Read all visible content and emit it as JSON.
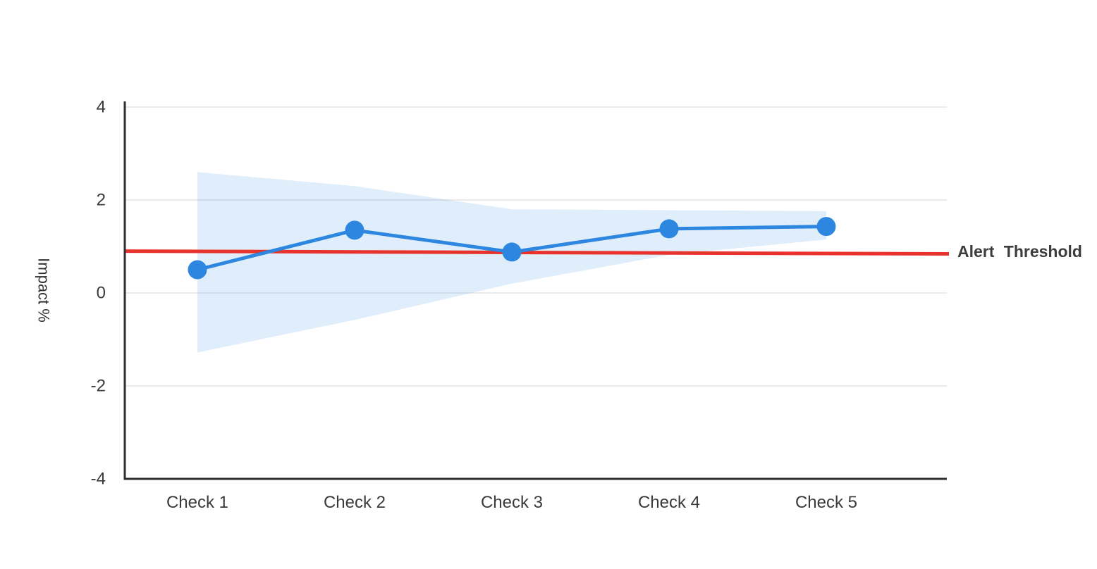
{
  "chart_data": {
    "type": "line",
    "title": "",
    "categories": [
      "Check 1",
      "Check 2",
      "Check 3",
      "Check 4",
      "Check 5"
    ],
    "series": [
      {
        "name": "Impact %",
        "values": [
          0.5,
          1.35,
          0.88,
          1.38,
          1.43
        ]
      }
    ],
    "confidence_band": {
      "upper": [
        2.6,
        2.3,
        1.8,
        1.78,
        1.76
      ],
      "lower": [
        -1.28,
        -0.58,
        0.2,
        0.82,
        1.15
      ]
    },
    "threshold": {
      "label": "Alert Threshold",
      "start_value": 0.9,
      "end_value": 0.84
    },
    "xlabel": "",
    "ylabel": "Impact %",
    "yticks": [
      "4",
      "2",
      "0",
      "-2",
      "-4"
    ],
    "ytick_values": [
      4,
      2,
      0,
      -2,
      -4
    ],
    "ylim": [
      -4,
      4
    ],
    "grid": "horizontal",
    "legend_position": "none",
    "colors": {
      "line": "#2d87e0",
      "marker": "#2d87e0",
      "band": "#2d87e0",
      "band_opacity": "0.15",
      "threshold": "#e8332c",
      "grid": "#e3e3e3",
      "axis": "#2e2e2e",
      "tick_text": "#3a3a3a",
      "label_text": "#3d3d3d"
    }
  }
}
